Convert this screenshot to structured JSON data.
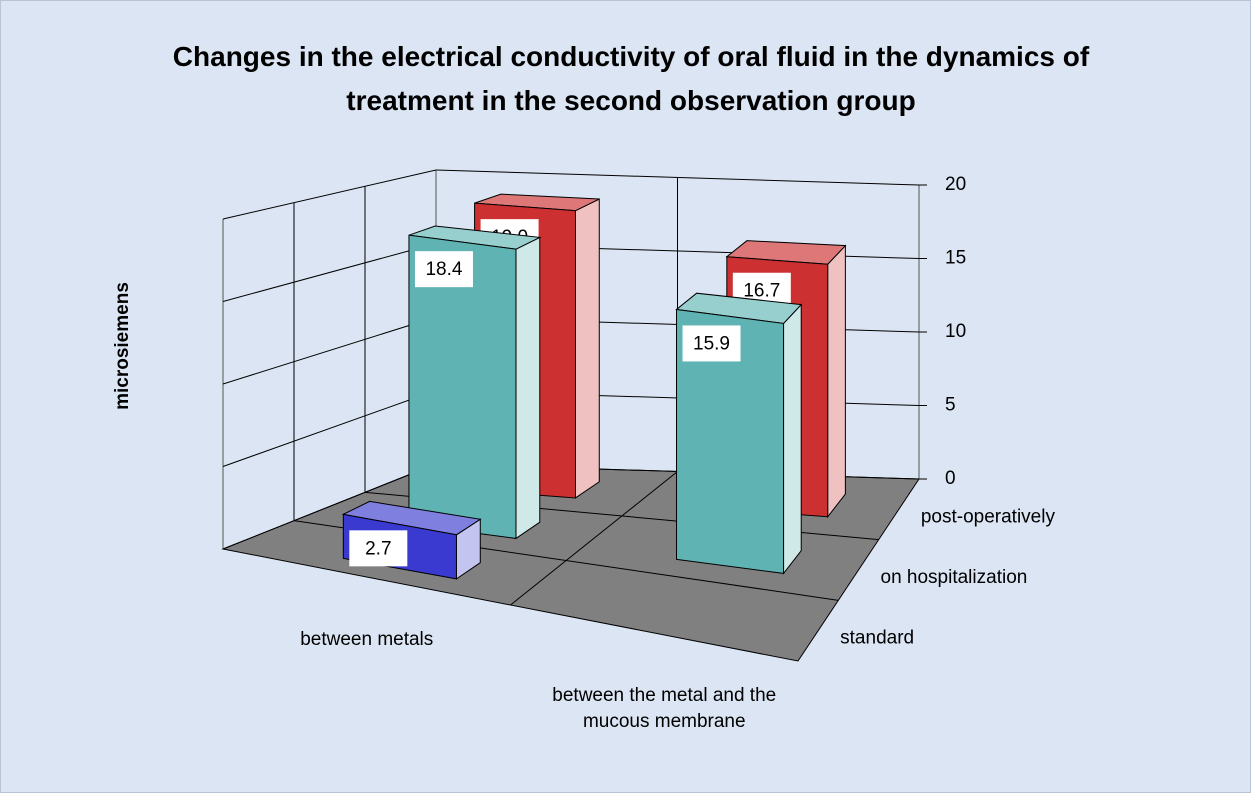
{
  "chart_data": {
    "type": "bar3d",
    "title": "Changes in the electrical conductivity of oral fluid in the dynamics of treatment in the second observation group",
    "y_label": "microsiemens",
    "categories": [
      "between metals",
      "between the metal and the mucous membrane"
    ],
    "series": [
      {
        "name": "standard",
        "color": "#3a3ad0",
        "values": [
          2.7,
          null
        ]
      },
      {
        "name": "on hospitalization",
        "color": "#5fb3b3",
        "values": [
          18.4,
          15.9
        ]
      },
      {
        "name": "post-operatively",
        "color": "#cc3030",
        "values": [
          19.0,
          16.7
        ],
        "value_labels": [
          "19.0",
          "16.7"
        ]
      }
    ],
    "ylim": [
      0,
      20
    ],
    "yticks": [
      0,
      5,
      10,
      15,
      20
    ],
    "grid": true
  }
}
